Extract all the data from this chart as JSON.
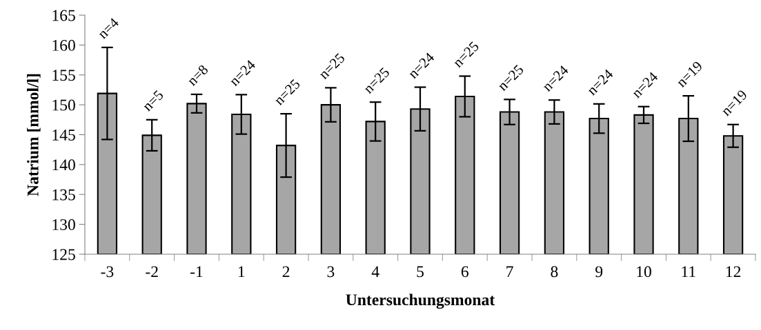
{
  "chart_data": {
    "type": "bar",
    "xlabel": "Untersuchungsmonat",
    "ylabel": "Natrium [mmol/l]",
    "categories": [
      "-3",
      "-2",
      "-1",
      "1",
      "2",
      "3",
      "4",
      "5",
      "6",
      "7",
      "8",
      "9",
      "10",
      "11",
      "12"
    ],
    "values": [
      151.9,
      144.9,
      150.2,
      148.4,
      143.2,
      150.0,
      147.2,
      149.3,
      151.4,
      148.8,
      148.8,
      147.7,
      148.3,
      147.7,
      144.8
    ],
    "errors": [
      7.7,
      2.6,
      1.55,
      3.3,
      5.3,
      2.85,
      3.25,
      3.65,
      3.4,
      2.1,
      2.0,
      2.45,
      1.4,
      3.8,
      1.9
    ],
    "annotations": [
      {
        "text": "n=4",
        "x": "-3",
        "y": 159.6
      },
      {
        "text": "n=5",
        "x": "-2",
        "y": 147.5
      },
      {
        "text": "n=8",
        "x": "-1",
        "y": 151.75
      },
      {
        "text": "n=24",
        "x": "1",
        "y": 151.7
      },
      {
        "text": "n=25",
        "x": "2",
        "y": 148.5
      },
      {
        "text": "n=25",
        "x": "3",
        "y": 152.85
      },
      {
        "text": "n=25",
        "x": "4",
        "y": 150.45
      },
      {
        "text": "n=24",
        "x": "5",
        "y": 152.95
      },
      {
        "text": "n=25",
        "x": "6",
        "y": 154.8
      },
      {
        "text": "n=25",
        "x": "7",
        "y": 150.9
      },
      {
        "text": "n=24",
        "x": "8",
        "y": 150.8
      },
      {
        "text": "n=24",
        "x": "9",
        "y": 150.15
      },
      {
        "text": "n=24",
        "x": "10",
        "y": 149.7
      },
      {
        "text": "n=19",
        "x": "11",
        "y": 151.5
      },
      {
        "text": "n=19",
        "x": "12",
        "y": 146.7
      }
    ],
    "color": "#a6a6a6",
    "ylim": [
      125,
      165
    ],
    "yticks": [
      125,
      130,
      135,
      140,
      145,
      150,
      155,
      160,
      165
    ],
    "grid": false
  }
}
